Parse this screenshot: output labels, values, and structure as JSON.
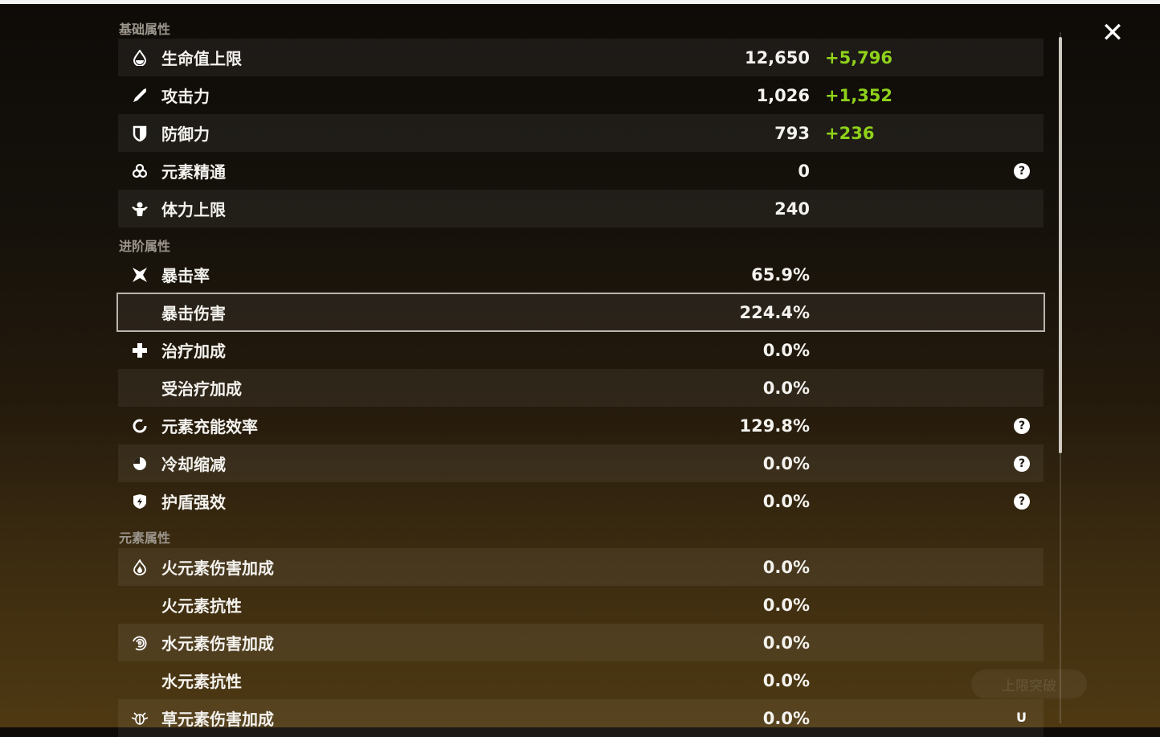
{
  "sections": {
    "basic": "基础属性",
    "advanced": "进阶属性",
    "elemental": "元素属性"
  },
  "basic": [
    {
      "icon": "hp-drop-icon",
      "label": "生命值上限",
      "value": "12,650",
      "bonus": "+5,796"
    },
    {
      "icon": "sword-icon",
      "label": "攻击力",
      "value": "1,026",
      "bonus": "+1,352"
    },
    {
      "icon": "shield-icon",
      "label": "防御力",
      "value": "793",
      "bonus": "+236"
    },
    {
      "icon": "elemental-mastery-icon",
      "label": "元素精通",
      "value": "0",
      "help": "?"
    },
    {
      "icon": "stamina-icon",
      "label": "体力上限",
      "value": "240"
    }
  ],
  "advanced": [
    {
      "icon": "crit-rate-icon",
      "label": "暴击率",
      "value": "65.9%"
    },
    {
      "label": "暴击伤害",
      "value": "224.4%",
      "selected": true
    },
    {
      "icon": "healing-cross-icon",
      "label": "治疗加成",
      "value": "0.0%"
    },
    {
      "label": "受治疗加成",
      "value": "0.0%"
    },
    {
      "icon": "energy-recharge-icon",
      "label": "元素充能效率",
      "value": "129.8%",
      "help": "?"
    },
    {
      "icon": "cooldown-icon",
      "label": "冷却缩减",
      "value": "0.0%",
      "help": "?"
    },
    {
      "icon": "shield-strength-icon",
      "label": "护盾强效",
      "value": "0.0%",
      "help": "?"
    }
  ],
  "elemental": [
    {
      "icon": "pyro-icon",
      "label": "火元素伤害加成",
      "value": "0.0%"
    },
    {
      "label": "火元素抗性",
      "value": "0.0%"
    },
    {
      "icon": "hydro-icon",
      "label": "水元素伤害加成",
      "value": "0.0%"
    },
    {
      "label": "水元素抗性",
      "value": "0.0%"
    },
    {
      "icon": "dendro-icon",
      "label": "草元素伤害加成",
      "value": "0.0%"
    }
  ],
  "close": "✕",
  "background": {
    "ascend_button": "上限突破",
    "uid_prefix": "U"
  },
  "colors": {
    "bonus": "#8fd21a"
  }
}
